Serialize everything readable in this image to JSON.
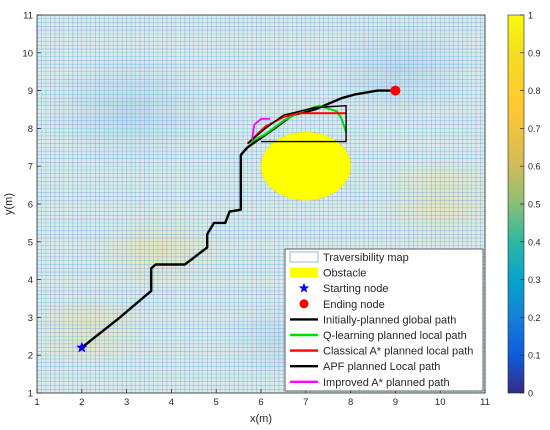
{
  "chart_data": {
    "type": "line",
    "xlabel": "x(m)",
    "ylabel": "y(m)",
    "xlim": [
      1,
      11
    ],
    "ylim": [
      1,
      11
    ],
    "x_ticks": [
      "1",
      "2",
      "3",
      "4",
      "5",
      "6",
      "7",
      "8",
      "9",
      "10",
      "11"
    ],
    "y_ticks": [
      "1",
      "2",
      "3",
      "4",
      "5",
      "6",
      "7",
      "8",
      "9",
      "10",
      "11"
    ],
    "grid": "mesh",
    "background_cmap": "parula",
    "colorbar": {
      "range": [
        0,
        1
      ],
      "ticks": [
        "0",
        "0.1",
        "0.2",
        "0.3",
        "0.4",
        "0.5",
        "0.6",
        "0.7",
        "0.8",
        "0.9",
        "1"
      ]
    },
    "legend_position": "bottom-right",
    "obstacle": {
      "label": "Obstacle",
      "center": [
        7,
        7
      ],
      "rx": 1,
      "ry": 0.9,
      "color": "#ffff00"
    },
    "start": {
      "label": "Starting node",
      "x": 2,
      "y": 2.2,
      "color": "#0000ff"
    },
    "end": {
      "label": "Ending node",
      "x": 9,
      "y": 9,
      "color": "#ff0000"
    },
    "series": [
      {
        "name": "Initially-planned global path",
        "color": "#000000",
        "points": [
          [
            2,
            2.2
          ],
          [
            2.8,
            2.95
          ],
          [
            3.55,
            3.7
          ],
          [
            3.55,
            4.3
          ],
          [
            3.65,
            4.4
          ],
          [
            4.3,
            4.4
          ],
          [
            4.8,
            4.85
          ],
          [
            4.8,
            5.2
          ],
          [
            4.95,
            5.5
          ],
          [
            5.2,
            5.5
          ],
          [
            5.3,
            5.8
          ],
          [
            5.55,
            5.85
          ],
          [
            5.55,
            7.3
          ],
          [
            5.7,
            7.5
          ],
          [
            6.3,
            8.0
          ],
          [
            6.7,
            8.35
          ],
          [
            7.2,
            8.5
          ],
          [
            7.8,
            8.8
          ],
          [
            8.1,
            8.9
          ],
          [
            8.6,
            9.0
          ],
          [
            9,
            9
          ]
        ]
      },
      {
        "name": "Q-learning planned local path",
        "color": "#00dd00",
        "points": [
          [
            5.7,
            7.6
          ],
          [
            6.1,
            7.85
          ],
          [
            6.5,
            8.2
          ],
          [
            6.9,
            8.45
          ],
          [
            7.3,
            8.6
          ],
          [
            7.7,
            8.45
          ],
          [
            7.8,
            8.25
          ],
          [
            7.9,
            7.9
          ]
        ]
      },
      {
        "name": "Classical A* planned local path",
        "color": "#ff0000",
        "points": [
          [
            5.7,
            7.6
          ],
          [
            6.1,
            8.05
          ],
          [
            6.5,
            8.3
          ],
          [
            6.8,
            8.4
          ],
          [
            7.9,
            8.4
          ]
        ]
      },
      {
        "name": "APF planned Local path",
        "color": "#000000",
        "points": [
          [
            5.7,
            7.6
          ],
          [
            6.1,
            8.0
          ],
          [
            6.5,
            8.35
          ],
          [
            7.2,
            8.55
          ],
          [
            7.9,
            8.6
          ],
          [
            7.9,
            7.65
          ],
          [
            6.0,
            7.65
          ]
        ]
      },
      {
        "name": "Improved A* planned path",
        "color": "#ff00ff",
        "points": [
          [
            5.8,
            7.7
          ],
          [
            5.85,
            8.1
          ],
          [
            6.0,
            8.25
          ],
          [
            6.2,
            8.25
          ]
        ]
      }
    ],
    "legend": [
      {
        "label": "Traversibility map",
        "kind": "box"
      },
      {
        "label": "Obstacle",
        "kind": "fill",
        "color": "#ffff00"
      },
      {
        "label": "Starting node",
        "kind": "star",
        "color": "#0000ff"
      },
      {
        "label": "Ending node",
        "kind": "dot",
        "color": "#ff0000"
      },
      {
        "label": "Initially-planned global path",
        "kind": "line",
        "color": "#000000"
      },
      {
        "label": "Q-learning planned local path",
        "kind": "line",
        "color": "#00dd00"
      },
      {
        "label": "Classical A* planned local path",
        "kind": "line",
        "color": "#ff0000"
      },
      {
        "label": "APF planned Local path",
        "kind": "line",
        "color": "#000000"
      },
      {
        "label": "Improved A* planned path",
        "kind": "line",
        "color": "#ff00ff"
      }
    ]
  }
}
